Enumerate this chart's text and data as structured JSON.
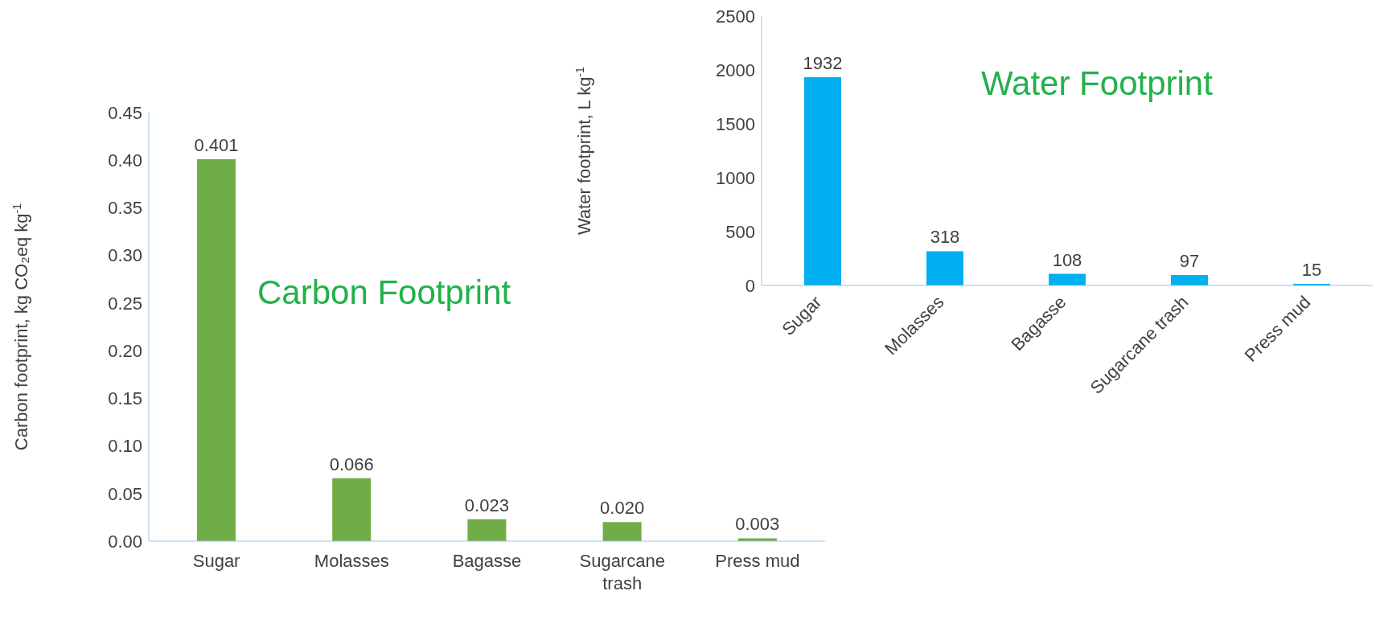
{
  "chart_data": [
    {
      "type": "bar",
      "title": "Carbon Footprint",
      "ylabel": "Carbon footprint, kg CO₂eq kg$^{-1}$",
      "categories": [
        "Sugar",
        "Molasses",
        "Bagasse",
        "Sugarcane trash",
        "Press mud"
      ],
      "values": [
        0.401,
        0.066,
        0.023,
        0.02,
        0.003
      ],
      "value_labels": [
        "0.401",
        "0.066",
        "0.023",
        "0.020",
        "0.003"
      ],
      "color": "#70ad47",
      "ylim": [
        0,
        0.45
      ],
      "yticks": [
        {
          "value": 0,
          "label": "0.00"
        },
        {
          "value": 0.05,
          "label": "0.05"
        },
        {
          "value": 0.1,
          "label": "0.10"
        },
        {
          "value": 0.15,
          "label": "0.15"
        },
        {
          "value": 0.2,
          "label": "0.20"
        },
        {
          "value": 0.25,
          "label": "0.25"
        },
        {
          "value": 0.3,
          "label": "0.30"
        },
        {
          "value": 0.35,
          "label": "0.35"
        },
        {
          "value": 0.4,
          "label": "0.40"
        },
        {
          "value": 0.45,
          "label": "0.45"
        }
      ],
      "grid": false
    },
    {
      "type": "bar",
      "title": "Water Footprint",
      "ylabel": "Water footprint, L kg$^{-1}$",
      "categories": [
        "Sugar",
        "Molasses",
        "Bagasse",
        "Sugarcane trash",
        "Press mud"
      ],
      "values": [
        1932,
        318,
        108,
        97,
        15
      ],
      "data_labels": true,
      "color": "#00b0f0",
      "ylim": [
        0,
        2500
      ],
      "yticks": [
        0,
        500,
        1000,
        1500,
        2000,
        2500
      ],
      "grid": false
    }
  ]
}
